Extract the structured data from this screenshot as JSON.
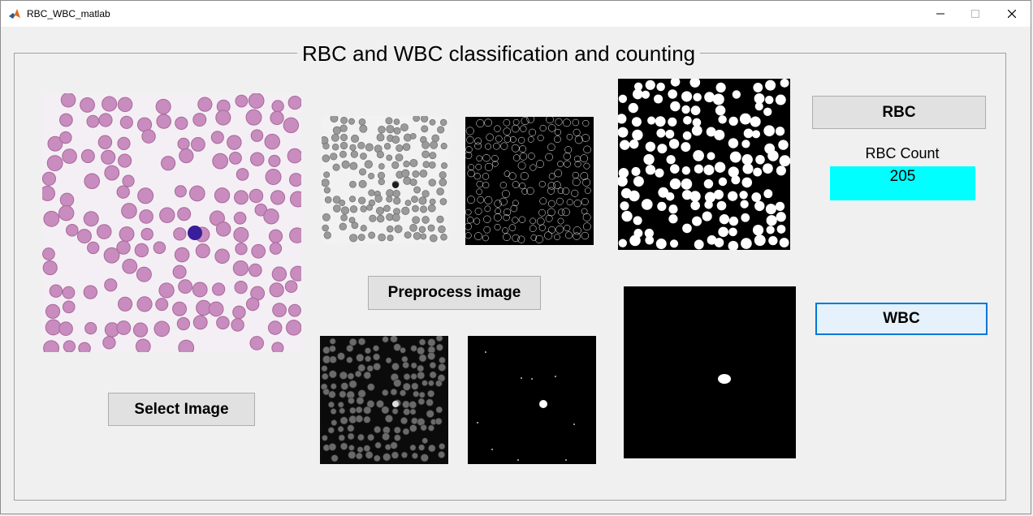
{
  "window": {
    "title": "RBC_WBC_matlab",
    "icon": "matlab-icon"
  },
  "panel": {
    "title": "RBC and WBC classification and counting"
  },
  "buttons": {
    "rbc": "RBC",
    "wbc": "WBC",
    "preprocess": "Preprocess image",
    "select": "Select Image"
  },
  "rbc_count": {
    "label": "RBC Count",
    "value": "205"
  },
  "colors": {
    "accent": "#00ffff",
    "rbc_cell": "#c88cbe",
    "wbc_cell": "#3a1d9a"
  }
}
